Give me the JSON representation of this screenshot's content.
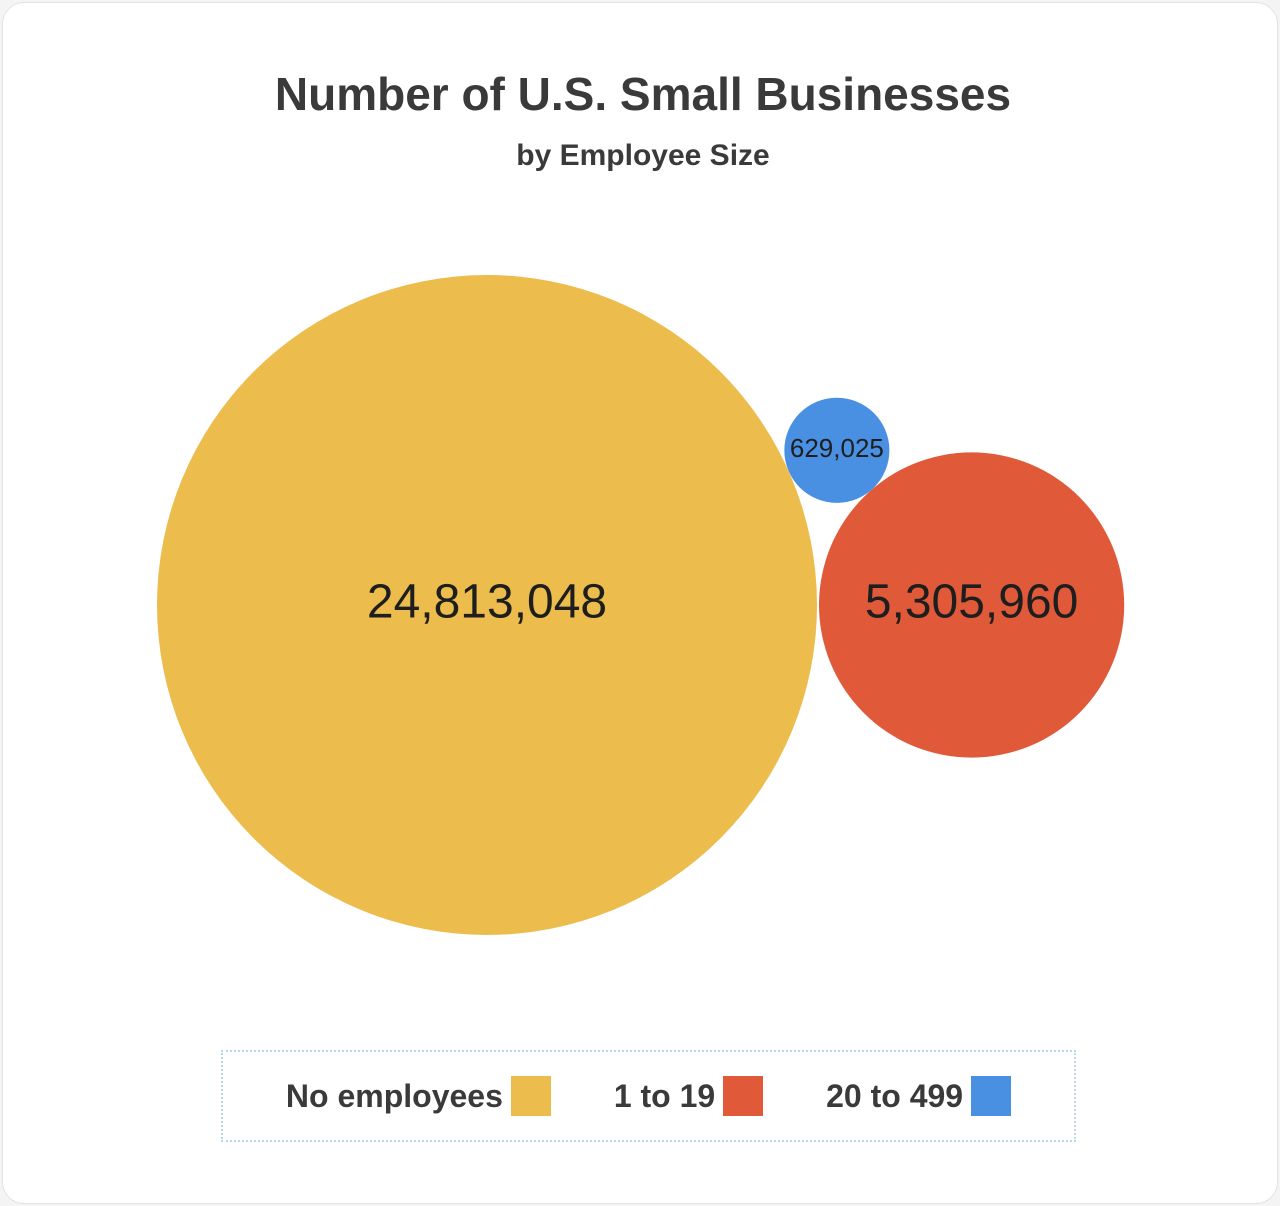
{
  "chart_data": {
    "type": "bubble",
    "title": "Number of U.S. Small Businesses",
    "subtitle": "by Employee Size",
    "categories": [
      "No employees",
      "1 to 19",
      "20 to 499"
    ],
    "values": [
      24813048,
      5305960,
      629025
    ],
    "value_labels": [
      "24,813,048",
      "5,305,960",
      "629,025"
    ],
    "colors": [
      "#ecbc4c",
      "#e05a3a",
      "#4a90e2"
    ]
  }
}
